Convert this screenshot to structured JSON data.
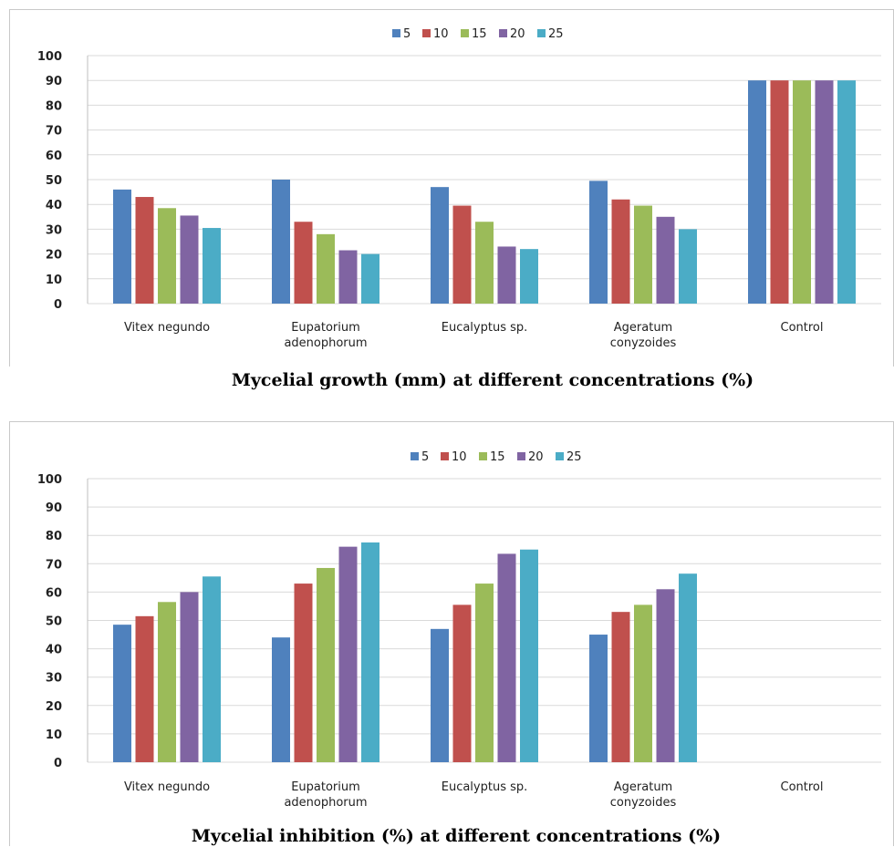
{
  "colors": [
    "#4f81bd",
    "#c0504d",
    "#9bbb59",
    "#8064a2",
    "#4bacc6"
  ],
  "chart_data": [
    {
      "type": "bar",
      "title": "Mycelial growth (mm) at different concentrations (%)",
      "ylim": [
        0,
        100
      ],
      "yticks": [
        0,
        10,
        20,
        30,
        40,
        50,
        60,
        70,
        80,
        90,
        100
      ],
      "grid": true,
      "legend": "top",
      "categories": [
        [
          "Vitex negundo"
        ],
        [
          "Eupatorium",
          "adenophorum"
        ],
        [
          "Eucalyptus sp."
        ],
        [
          "Ageratum",
          "conyzoides"
        ],
        [
          "Control"
        ]
      ],
      "series": [
        {
          "name": "5",
          "values": [
            46,
            50,
            47,
            49.5,
            90
          ]
        },
        {
          "name": "10",
          "values": [
            43,
            33,
            39.5,
            42,
            90
          ]
        },
        {
          "name": "15",
          "values": [
            38.5,
            28,
            33,
            39.5,
            90
          ]
        },
        {
          "name": "20",
          "values": [
            35.5,
            21.5,
            23,
            35,
            90
          ]
        },
        {
          "name": "25",
          "values": [
            30.5,
            20,
            22,
            30,
            90
          ]
        }
      ]
    },
    {
      "type": "bar",
      "title": "Mycelial inhibition (%) at different concentrations (%)",
      "ylim": [
        0,
        100
      ],
      "yticks": [
        0,
        10,
        20,
        30,
        40,
        50,
        60,
        70,
        80,
        90,
        100
      ],
      "grid": true,
      "legend": "top",
      "categories": [
        [
          "Vitex negundo"
        ],
        [
          "Eupatorium",
          "adenophorum"
        ],
        [
          "Eucalyptus sp."
        ],
        [
          "Ageratum",
          "conyzoides"
        ],
        [
          "Control"
        ]
      ],
      "series": [
        {
          "name": "5",
          "values": [
            48.5,
            44,
            47,
            45,
            0
          ]
        },
        {
          "name": "10",
          "values": [
            51.5,
            63,
            55.5,
            53,
            0
          ]
        },
        {
          "name": "15",
          "values": [
            56.5,
            68.5,
            63,
            55.5,
            0
          ]
        },
        {
          "name": "20",
          "values": [
            60,
            76,
            73.5,
            61,
            0
          ]
        },
        {
          "name": "25",
          "values": [
            65.5,
            77.5,
            75,
            66.5,
            0
          ]
        }
      ]
    }
  ]
}
